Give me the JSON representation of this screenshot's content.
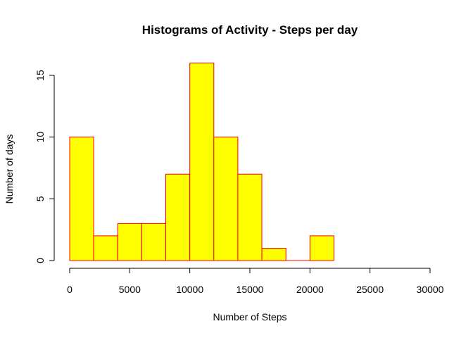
{
  "chart_data": {
    "type": "bar",
    "title": "Histograms of Activity - Steps per day",
    "xlabel": "Number of Steps",
    "ylabel": "Number of days",
    "bin_width": 2000,
    "bins": [
      {
        "start": 0,
        "end": 2000,
        "count": 10
      },
      {
        "start": 2000,
        "end": 4000,
        "count": 2
      },
      {
        "start": 4000,
        "end": 6000,
        "count": 3
      },
      {
        "start": 6000,
        "end": 8000,
        "count": 3
      },
      {
        "start": 8000,
        "end": 10000,
        "count": 7
      },
      {
        "start": 10000,
        "end": 12000,
        "count": 16
      },
      {
        "start": 12000,
        "end": 14000,
        "count": 10
      },
      {
        "start": 14000,
        "end": 16000,
        "count": 7
      },
      {
        "start": 16000,
        "end": 18000,
        "count": 1
      },
      {
        "start": 18000,
        "end": 20000,
        "count": 0
      },
      {
        "start": 20000,
        "end": 22000,
        "count": 2
      }
    ],
    "xlim": [
      0,
      30000
    ],
    "ylim": [
      0,
      16
    ],
    "x_ticks": [
      0,
      5000,
      10000,
      15000,
      20000,
      25000,
      30000
    ],
    "y_ticks": [
      0,
      5,
      10,
      15
    ],
    "grid": false,
    "colors": {
      "fill": "#ffff00",
      "border": "#ff0000"
    }
  }
}
